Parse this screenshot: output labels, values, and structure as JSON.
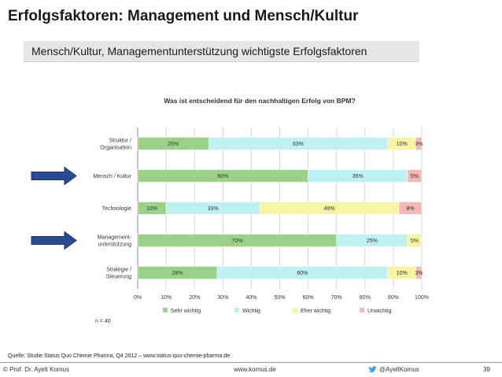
{
  "slide": {
    "title": "Erfolgsfaktoren: Management und Mensch/Kultur",
    "subtitle": "Mensch/Kultur, Managementunterstützung wichtigste Erfolgsfaktoren"
  },
  "chart_data": {
    "type": "bar",
    "orientation": "horizontal",
    "stacked": true,
    "title": "Was ist entscheidend für den nachhaltigen Erfolg von BPM?",
    "categories": [
      [
        "Struktur /",
        "Organisation"
      ],
      [
        "Mensch / Kultur"
      ],
      [
        "Technologie"
      ],
      [
        "Management-",
        "unterstützung"
      ],
      [
        "Strategie /",
        "Steuerung"
      ]
    ],
    "highlighted_categories": [
      1,
      3
    ],
    "series": [
      {
        "name": "Sehr wichtig",
        "color": "#9bd18b",
        "values": [
          25,
          60,
          10,
          70,
          28
        ]
      },
      {
        "name": "Wichtig",
        "color": "#bff0f2",
        "values": [
          63,
          35,
          33,
          25,
          60
        ]
      },
      {
        "name": "Eher wichtig",
        "color": "#f5f5a3",
        "values": [
          10,
          0,
          49,
          5,
          10
        ]
      },
      {
        "name": "Unwichtig",
        "color": "#f5b6b8",
        "values": [
          3,
          5,
          8,
          0,
          3
        ]
      }
    ],
    "x_ticks": [
      "0%",
      "10%",
      "20%",
      "30%",
      "40%",
      "50%",
      "60%",
      "70%",
      "80%",
      "90%",
      "100%"
    ],
    "xlim": [
      0,
      100
    ],
    "grid": true,
    "legend_position": "bottom",
    "note": "n = 40"
  },
  "footer": {
    "source": "Quelle: Studie Status Quo Chemie Pharma, Q4 2012 – www.status-quo-chemie-pharma.de",
    "author": "© Prof. Dr. Ayelt Komus",
    "website": "www.komus.de",
    "twitter": "@AyeltKomus",
    "page": "39"
  }
}
